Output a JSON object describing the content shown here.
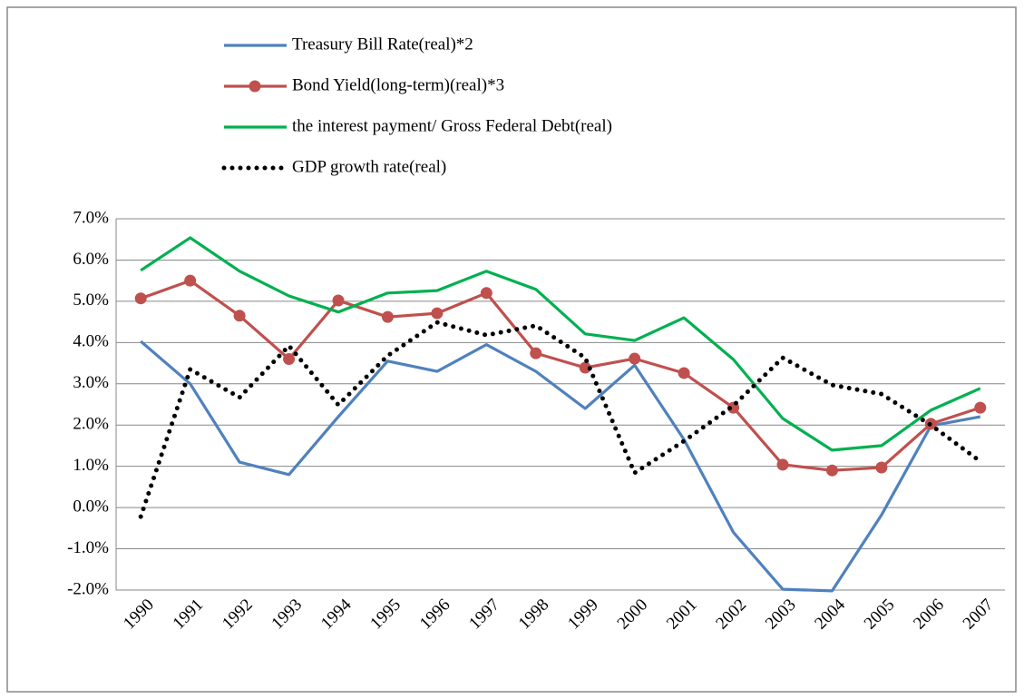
{
  "chart_data": {
    "type": "line",
    "categories": [
      "1990",
      "1991",
      "1992",
      "1993",
      "1994",
      "1995",
      "1996",
      "1997",
      "1998",
      "1999",
      "2000",
      "2001",
      "2002",
      "2003",
      "2004",
      "2005",
      "2006",
      "2007"
    ],
    "series": [
      {
        "name": "Treasury Bill Rate(real)*2",
        "color": "#4f81bd",
        "style": "solid",
        "values": [
          4.03,
          3.0,
          1.1,
          0.8,
          2.2,
          3.55,
          3.3,
          3.95,
          3.3,
          2.4,
          3.45,
          1.65,
          -0.6,
          -1.98,
          -2.02,
          -0.18,
          1.98,
          2.2
        ]
      },
      {
        "name": "Bond Yield(long-term)(real)*3",
        "color": "#c0504d",
        "style": "solid",
        "marker": "circle",
        "values": [
          5.07,
          5.5,
          4.65,
          3.6,
          5.02,
          4.62,
          4.71,
          5.2,
          3.74,
          3.39,
          3.61,
          3.26,
          2.42,
          1.04,
          0.9,
          0.97,
          2.03,
          2.42
        ]
      },
      {
        "name": "the interest payment/ Gross Federal Debt(real)",
        "color": "#00b050",
        "style": "solid",
        "values": [
          5.75,
          6.54,
          5.73,
          5.13,
          4.74,
          5.2,
          5.26,
          5.73,
          5.29,
          4.21,
          4.05,
          4.6,
          3.59,
          2.16,
          1.39,
          1.5,
          2.36,
          2.89
        ]
      },
      {
        "name": "GDP growth rate(real)",
        "color": "#000000",
        "style": "dotted",
        "values": [
          -0.22,
          3.35,
          2.67,
          3.92,
          2.49,
          3.68,
          4.49,
          4.18,
          4.41,
          3.63,
          0.84,
          1.61,
          2.47,
          3.63,
          2.97,
          2.75,
          2.0,
          1.12
        ]
      }
    ],
    "ylim": [
      -2,
      7
    ],
    "yticks": [
      {
        "value": -2,
        "label": "-2.0%"
      },
      {
        "value": -1,
        "label": "-1.0%"
      },
      {
        "value": 0,
        "label": "0.0%"
      },
      {
        "value": 1,
        "label": "1.0%"
      },
      {
        "value": 2,
        "label": "2.0%"
      },
      {
        "value": 3,
        "label": "3.0%"
      },
      {
        "value": 4,
        "label": "4.0%"
      },
      {
        "value": 5,
        "label": "5.0%"
      },
      {
        "value": 6,
        "label": "6.0%"
      },
      {
        "value": 7,
        "label": "7.0%"
      }
    ],
    "grid": true,
    "legend": "top"
  }
}
